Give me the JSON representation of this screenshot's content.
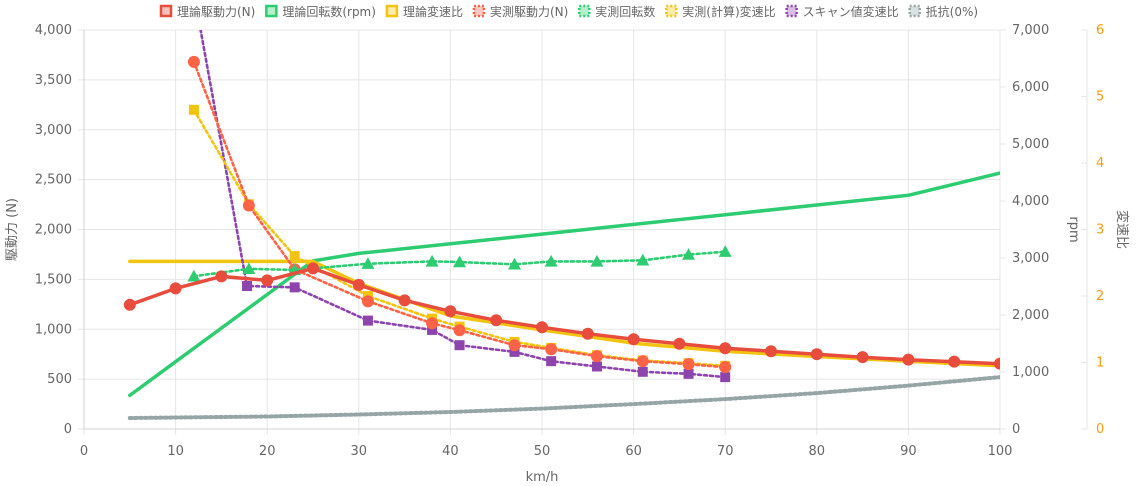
{
  "chart_data": {
    "type": "line",
    "xlabel": "km/h",
    "x_axis": {
      "min": 0,
      "max": 100,
      "ticks": [
        0,
        10,
        20,
        30,
        40,
        50,
        60,
        70,
        80,
        90,
        100
      ]
    },
    "y_axes": {
      "force": {
        "label": "駆動力 (N)",
        "min": 0,
        "max": 4000,
        "ticks": [
          "0",
          "500",
          "1,000",
          "1,500",
          "2,000",
          "2,500",
          "3,000",
          "3,500",
          "4,000"
        ]
      },
      "rpm": {
        "label": "rpm",
        "min": 0,
        "max": 7000,
        "ticks": [
          "0",
          "1,000",
          "2,000",
          "3,000",
          "4,000",
          "5,000",
          "6,000",
          "7,000"
        ]
      },
      "ratio": {
        "label": "変速比",
        "min": 0,
        "max": 6,
        "color": "#f39c12",
        "ticks": [
          "0",
          "1",
          "2",
          "3",
          "4",
          "5",
          "6"
        ]
      }
    },
    "grid": true,
    "legend_position": "top",
    "series": [
      {
        "name": "理論駆動力(N)",
        "axis": "force",
        "color": "#e74c3c",
        "style": "solid",
        "marker": "circle",
        "show_markers": true,
        "points": [
          [
            5,
            1245
          ],
          [
            10,
            1410
          ],
          [
            15,
            1530
          ],
          [
            20,
            1490
          ],
          [
            25,
            1610
          ],
          [
            30,
            1445
          ],
          [
            35,
            1290
          ],
          [
            40,
            1180
          ],
          [
            45,
            1090
          ],
          [
            50,
            1020
          ],
          [
            55,
            955
          ],
          [
            60,
            900
          ],
          [
            65,
            855
          ],
          [
            70,
            810
          ],
          [
            75,
            780
          ],
          [
            80,
            750
          ],
          [
            85,
            720
          ],
          [
            90,
            695
          ],
          [
            95,
            675
          ],
          [
            100,
            655
          ]
        ]
      },
      {
        "name": "理論回転数(rpm)",
        "axis": "rpm",
        "color": "#2ecc71",
        "style": "solid",
        "marker": "square",
        "show_markers": false,
        "points": [
          [
            5,
            590
          ],
          [
            10,
            1180
          ],
          [
            15,
            1770
          ],
          [
            20,
            2360
          ],
          [
            25,
            2950
          ],
          [
            30,
            3080
          ],
          [
            40,
            3250
          ],
          [
            50,
            3420
          ],
          [
            60,
            3590
          ],
          [
            70,
            3760
          ],
          [
            80,
            3930
          ],
          [
            90,
            4100
          ],
          [
            100,
            4490
          ]
        ]
      },
      {
        "name": "理論変速比",
        "axis": "ratio",
        "color": "#f1c40f",
        "style": "solid",
        "marker": "square",
        "show_markers": false,
        "points": [
          [
            5,
            2.52
          ],
          [
            25,
            2.52
          ],
          [
            30,
            2.19
          ],
          [
            40,
            1.7
          ],
          [
            50,
            1.49
          ],
          [
            60,
            1.29
          ],
          [
            70,
            1.17
          ],
          [
            80,
            1.09
          ],
          [
            90,
            1.02
          ],
          [
            100,
            0.95
          ]
        ]
      },
      {
        "name": "実測駆動力(N)",
        "axis": "force",
        "color": "#ff6347",
        "style": "dotted",
        "marker": "circle",
        "show_markers": true,
        "points": [
          [
            12,
            3680
          ],
          [
            18,
            2240
          ],
          [
            23,
            1600
          ],
          [
            31,
            1280
          ],
          [
            38,
            1060
          ],
          [
            41,
            990
          ],
          [
            47,
            840
          ],
          [
            51,
            800
          ],
          [
            56,
            730
          ],
          [
            61,
            680
          ],
          [
            66,
            650
          ],
          [
            70,
            620
          ]
        ]
      },
      {
        "name": "実測回転数",
        "axis": "rpm",
        "color": "#2ecc71",
        "style": "dotted",
        "marker": "triangle",
        "show_markers": true,
        "points": [
          [
            12,
            2680
          ],
          [
            18,
            2810
          ],
          [
            23,
            2790
          ],
          [
            31,
            2900
          ],
          [
            38,
            2940
          ],
          [
            41,
            2930
          ],
          [
            47,
            2890
          ],
          [
            51,
            2940
          ],
          [
            56,
            2940
          ],
          [
            61,
            2960
          ],
          [
            66,
            3060
          ],
          [
            70,
            3110
          ]
        ]
      },
      {
        "name": "実測(計算)変速比",
        "axis": "ratio",
        "color": "#f1c40f",
        "style": "dotted",
        "marker": "square",
        "show_markers": true,
        "points": [
          [
            12,
            4.8
          ],
          [
            18,
            3.38
          ],
          [
            23,
            2.6
          ],
          [
            31,
            2.0
          ],
          [
            38,
            1.66
          ],
          [
            41,
            1.54
          ],
          [
            47,
            1.31
          ],
          [
            51,
            1.22
          ],
          [
            56,
            1.11
          ],
          [
            61,
            1.03
          ],
          [
            66,
            0.99
          ],
          [
            70,
            0.95
          ]
        ]
      },
      {
        "name": "スキャン値変速比",
        "axis": "ratio",
        "color": "#8e44ad",
        "style": "dotted",
        "marker": "square",
        "show_markers": true,
        "points": [
          [
            12.6,
            6.1
          ],
          [
            17.8,
            2.15
          ],
          [
            23,
            2.13
          ],
          [
            31,
            1.63
          ],
          [
            38,
            1.49
          ],
          [
            41,
            1.26
          ],
          [
            47,
            1.16
          ],
          [
            51,
            1.02
          ],
          [
            56,
            0.94
          ],
          [
            61,
            0.86
          ],
          [
            66,
            0.83
          ],
          [
            70,
            0.78
          ]
        ]
      },
      {
        "name": "抵抗(0%)",
        "axis": "force",
        "color": "#95a5a6",
        "style": "dotted",
        "marker": "square",
        "show_markers": false,
        "points": [
          [
            5,
            110
          ],
          [
            20,
            125
          ],
          [
            30,
            145
          ],
          [
            40,
            170
          ],
          [
            50,
            205
          ],
          [
            60,
            250
          ],
          [
            70,
            300
          ],
          [
            80,
            360
          ],
          [
            90,
            435
          ],
          [
            100,
            520
          ]
        ]
      }
    ]
  }
}
